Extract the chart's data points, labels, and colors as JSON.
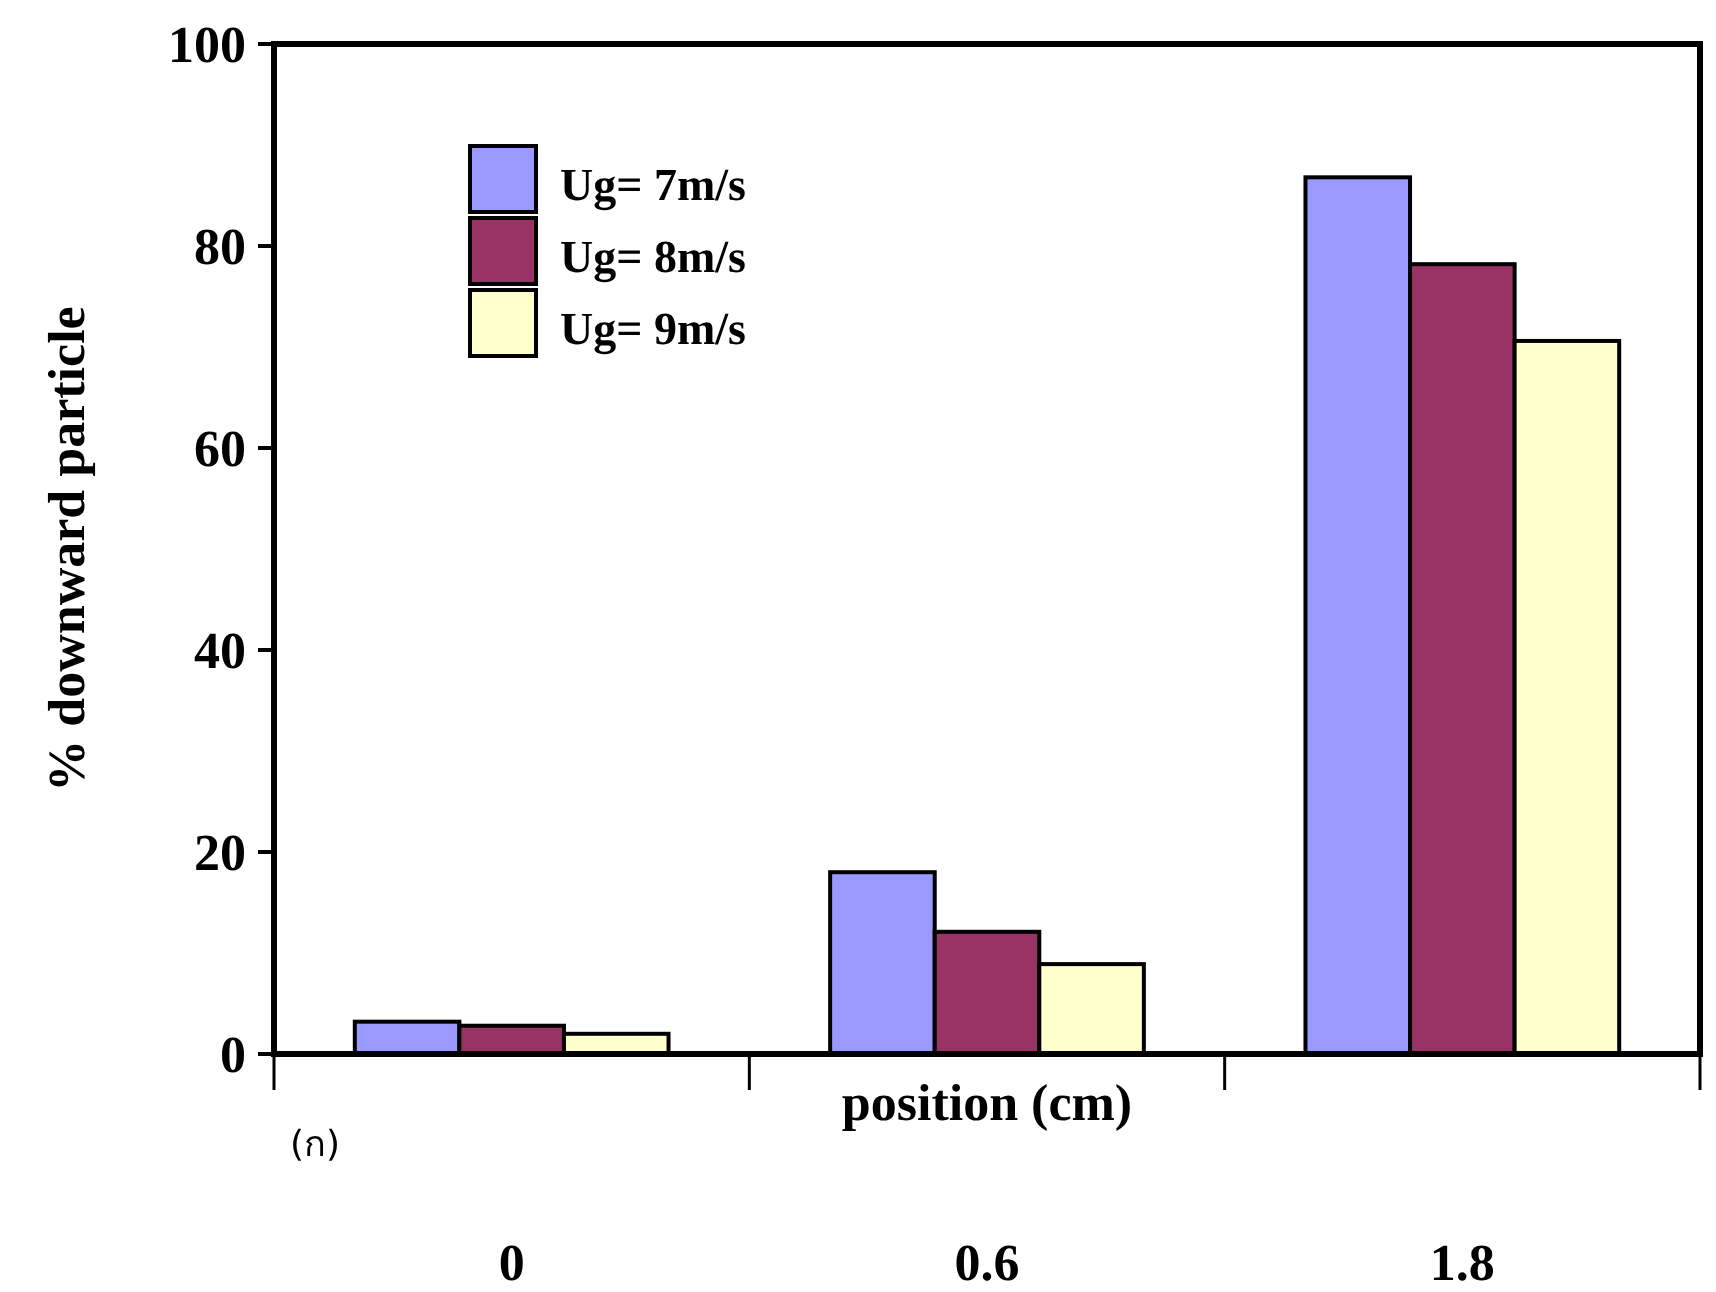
{
  "chart_data": {
    "type": "bar",
    "xlabel": "position (cm)",
    "ylabel": "% downward particle",
    "categories": [
      "0",
      "0.6",
      "1.8"
    ],
    "series": [
      {
        "name": "Ug= 7m/s",
        "color": "#9999ff",
        "values": [
          3.2,
          18.0,
          86.8
        ]
      },
      {
        "name": "Ug= 8m/s",
        "color": "#993366",
        "values": [
          2.8,
          12.1,
          78.2
        ]
      },
      {
        "name": "Ug= 9m/s",
        "color": "#ffffcc",
        "values": [
          2.0,
          8.9,
          70.6
        ]
      }
    ],
    "ylim": [
      0,
      100
    ],
    "yticks": [
      0,
      20,
      40,
      60,
      80,
      100
    ],
    "grid": false,
    "legend": "top left",
    "annotations": [
      "(ก)"
    ]
  }
}
